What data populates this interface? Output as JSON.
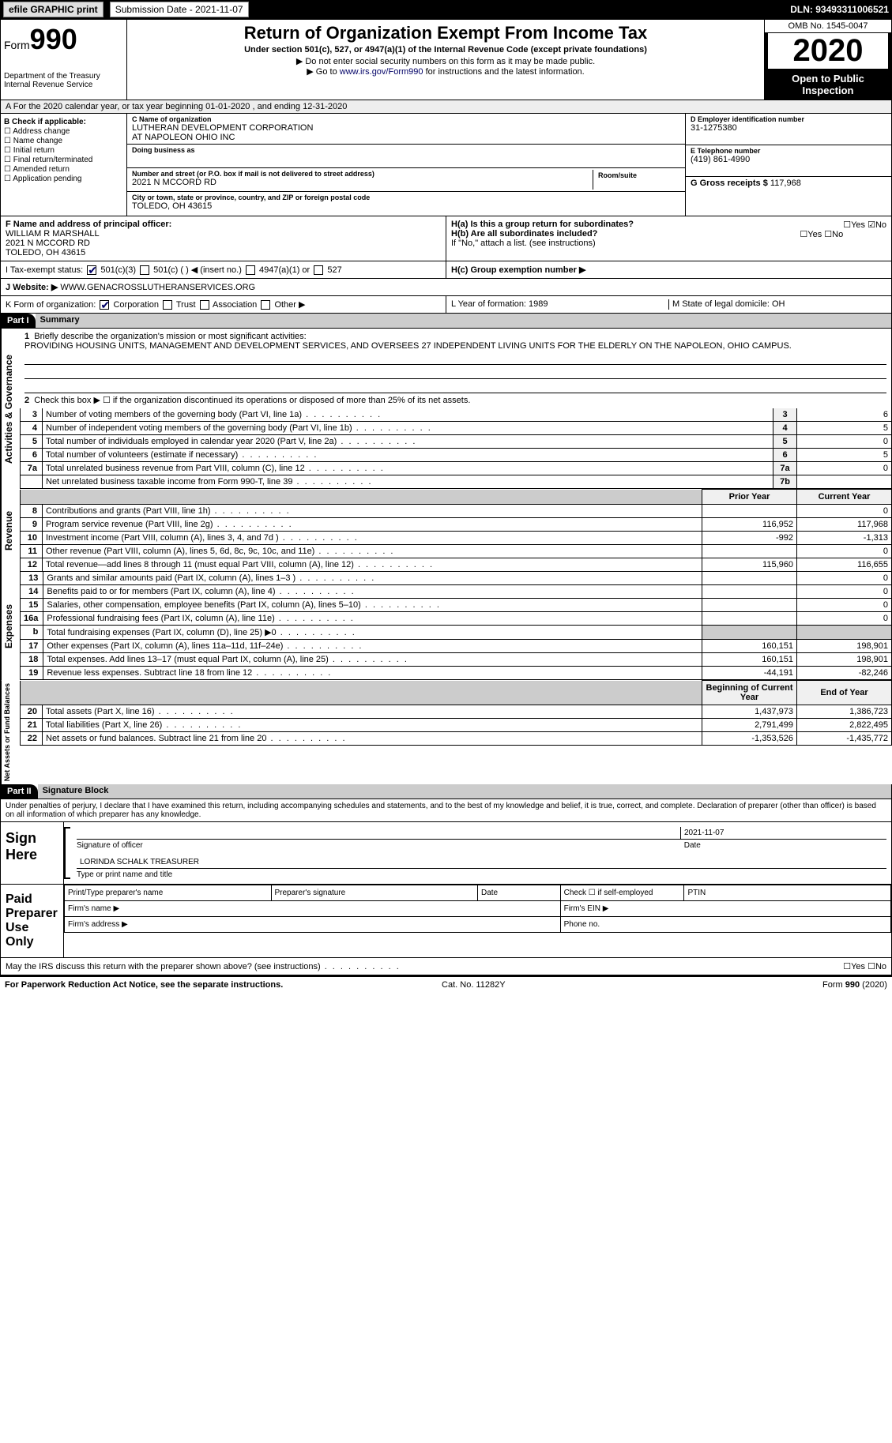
{
  "topbar": {
    "efile_label": "efile GRAPHIC print",
    "submission_label": "Submission Date - 2021-11-07",
    "dln": "DLN: 93493311006521"
  },
  "header": {
    "form_word": "Form",
    "form_num": "990",
    "title": "Return of Organization Exempt From Income Tax",
    "subtitle": "Under section 501(c), 527, or 4947(a)(1) of the Internal Revenue Code (except private foundations)",
    "note1": "▶ Do not enter social security numbers on this form as it may be made public.",
    "note2_pre": "▶ Go to ",
    "note2_link": "www.irs.gov/Form990",
    "note2_post": " for instructions and the latest information.",
    "dept": "Department of the Treasury\nInternal Revenue Service",
    "omb": "OMB No. 1545-0047",
    "year": "2020",
    "inspect": "Open to Public Inspection"
  },
  "row_a": "A For the 2020 calendar year, or tax year beginning 01-01-2020   , and ending 12-31-2020",
  "col_b": {
    "title": "B Check if applicable:",
    "items": [
      "Address change",
      "Name change",
      "Initial return",
      "Final return/terminated",
      "Amended return",
      "Application pending"
    ]
  },
  "col_c": {
    "name_lbl": "C Name of organization",
    "name": "LUTHERAN DEVELOPMENT CORPORATION\nAT NAPOLEON OHIO INC",
    "dba_lbl": "Doing business as",
    "addr_lbl": "Number and street (or P.O. box if mail is not delivered to street address)",
    "addr": "2021 N MCCORD RD",
    "room_lbl": "Room/suite",
    "city_lbl": "City or town, state or province, country, and ZIP or foreign postal code",
    "city": "TOLEDO, OH  43615"
  },
  "col_d": {
    "ein_lbl": "D Employer identification number",
    "ein": "31-1275380",
    "phone_lbl": "E Telephone number",
    "phone": "(419) 861-4990",
    "gross_lbl": "G Gross receipts $",
    "gross": "117,968"
  },
  "row_f": {
    "lbl": "F  Name and address of principal officer:",
    "name": "WILLIAM R MARSHALL",
    "addr": "2021 N MCCORD RD\nTOLEDO, OH  43615"
  },
  "row_h": {
    "ha": "H(a)  Is this a group return for subordinates?",
    "hb": "H(b)  Are all subordinates included?",
    "hb_note": "If \"No,\" attach a list. (see instructions)",
    "hc": "H(c)  Group exemption number ▶",
    "yes": "Yes",
    "no": "No"
  },
  "row_i": {
    "prefix": "I  Tax-exempt status:",
    "o1": "501(c)(3)",
    "o2": "501(c) (  ) ◀ (insert no.)",
    "o3": "4947(a)(1) or",
    "o4": "527"
  },
  "row_j": {
    "prefix": "J  Website: ▶",
    "val": "WWW.GENACROSSLUTHERANSERVICES.ORG"
  },
  "row_k": {
    "prefix": "K Form of organization:",
    "o1": "Corporation",
    "o2": "Trust",
    "o3": "Association",
    "o4": "Other ▶"
  },
  "row_lm": {
    "l": "L Year of formation: 1989",
    "m": "M State of legal domicile: OH"
  },
  "part1": {
    "label": "Part I",
    "title": "Summary",
    "q1": "Briefly describe the organization's mission or most significant activities:",
    "q1_ans": "PROVIDING HOUSING UNITS, MANAGEMENT AND DEVELOPMENT SERVICES, AND OVERSEES 27 INDEPENDENT LIVING UNITS FOR THE ELDERLY ON THE NAPOLEON, OHIO CAMPUS.",
    "q2": "Check this box ▶ ☐  if the organization discontinued its operations or disposed of more than 25% of its net assets.",
    "col_prior": "Prior Year",
    "col_current": "Current Year",
    "col_begin": "Beginning of Current Year",
    "col_end": "End of Year",
    "sections": {
      "gov": "Activities & Governance",
      "rev": "Revenue",
      "exp": "Expenses",
      "net": "Net Assets or Fund Balances"
    },
    "lines_gov": [
      {
        "n": "3",
        "t": "Number of voting members of the governing body (Part VI, line 1a)",
        "box": "3",
        "v": "6"
      },
      {
        "n": "4",
        "t": "Number of independent voting members of the governing body (Part VI, line 1b)",
        "box": "4",
        "v": "5"
      },
      {
        "n": "5",
        "t": "Total number of individuals employed in calendar year 2020 (Part V, line 2a)",
        "box": "5",
        "v": "0"
      },
      {
        "n": "6",
        "t": "Total number of volunteers (estimate if necessary)",
        "box": "6",
        "v": "5"
      },
      {
        "n": "7a",
        "t": "Total unrelated business revenue from Part VIII, column (C), line 12",
        "box": "7a",
        "v": "0"
      },
      {
        "n": "",
        "t": "Net unrelated business taxable income from Form 990-T, line 39",
        "box": "7b",
        "v": ""
      }
    ],
    "lines_rev": [
      {
        "n": "8",
        "t": "Contributions and grants (Part VIII, line 1h)",
        "p": "",
        "c": "0"
      },
      {
        "n": "9",
        "t": "Program service revenue (Part VIII, line 2g)",
        "p": "116,952",
        "c": "117,968"
      },
      {
        "n": "10",
        "t": "Investment income (Part VIII, column (A), lines 3, 4, and 7d )",
        "p": "-992",
        "c": "-1,313"
      },
      {
        "n": "11",
        "t": "Other revenue (Part VIII, column (A), lines 5, 6d, 8c, 9c, 10c, and 11e)",
        "p": "",
        "c": "0"
      },
      {
        "n": "12",
        "t": "Total revenue—add lines 8 through 11 (must equal Part VIII, column (A), line 12)",
        "p": "115,960",
        "c": "116,655"
      }
    ],
    "lines_exp": [
      {
        "n": "13",
        "t": "Grants and similar amounts paid (Part IX, column (A), lines 1–3 )",
        "p": "",
        "c": "0"
      },
      {
        "n": "14",
        "t": "Benefits paid to or for members (Part IX, column (A), line 4)",
        "p": "",
        "c": "0"
      },
      {
        "n": "15",
        "t": "Salaries, other compensation, employee benefits (Part IX, column (A), lines 5–10)",
        "p": "",
        "c": "0"
      },
      {
        "n": "16a",
        "t": "Professional fundraising fees (Part IX, column (A), line 11e)",
        "p": "",
        "c": "0"
      },
      {
        "n": "b",
        "t": "Total fundraising expenses (Part IX, column (D), line 25) ▶0",
        "p": "grey",
        "c": "grey"
      },
      {
        "n": "17",
        "t": "Other expenses (Part IX, column (A), lines 11a–11d, 11f–24e)",
        "p": "160,151",
        "c": "198,901"
      },
      {
        "n": "18",
        "t": "Total expenses. Add lines 13–17 (must equal Part IX, column (A), line 25)",
        "p": "160,151",
        "c": "198,901"
      },
      {
        "n": "19",
        "t": "Revenue less expenses. Subtract line 18 from line 12",
        "p": "-44,191",
        "c": "-82,246"
      }
    ],
    "lines_net": [
      {
        "n": "20",
        "t": "Total assets (Part X, line 16)",
        "p": "1,437,973",
        "c": "1,386,723"
      },
      {
        "n": "21",
        "t": "Total liabilities (Part X, line 26)",
        "p": "2,791,499",
        "c": "2,822,495"
      },
      {
        "n": "22",
        "t": "Net assets or fund balances. Subtract line 21 from line 20",
        "p": "-1,353,526",
        "c": "-1,435,772"
      }
    ]
  },
  "part2": {
    "label": "Part II",
    "title": "Signature Block",
    "decl": "Under penalties of perjury, I declare that I have examined this return, including accompanying schedules and statements, and to the best of my knowledge and belief, it is true, correct, and complete. Declaration of preparer (other than officer) is based on all information of which preparer has any knowledge.",
    "sign_here": "Sign Here",
    "sig_officer": "Signature of officer",
    "sig_date": "2021-11-07",
    "date_lbl": "Date",
    "name_title": "LORINDA SCHALK  TREASURER",
    "name_title_lbl": "Type or print name and title",
    "paid": "Paid Preparer Use Only",
    "p_name": "Print/Type preparer's name",
    "p_sig": "Preparer's signature",
    "p_date": "Date",
    "p_check": "Check ☐ if self-employed",
    "p_ptin": "PTIN",
    "p_firm": "Firm's name   ▶",
    "p_ein": "Firm's EIN ▶",
    "p_addr": "Firm's address ▶",
    "p_phone": "Phone no.",
    "discuss": "May the IRS discuss this return with the preparer shown above? (see instructions)"
  },
  "footer": {
    "left": "For Paperwork Reduction Act Notice, see the separate instructions.",
    "mid": "Cat. No. 11282Y",
    "right": "Form 990 (2020)"
  }
}
